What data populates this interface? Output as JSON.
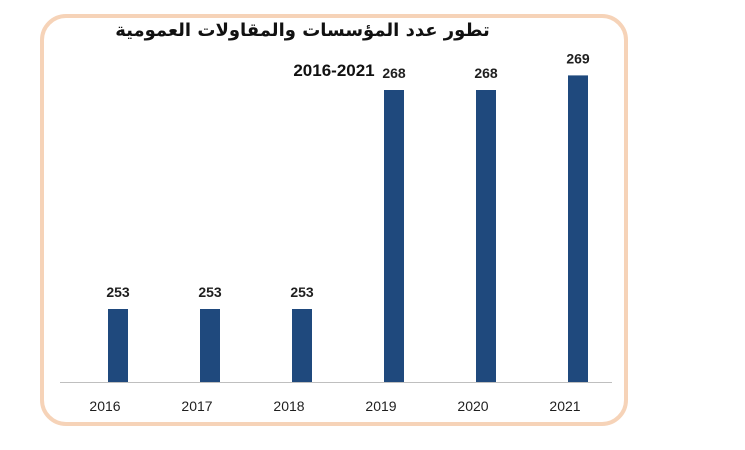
{
  "title": "تطور عدد المؤسسات والمقاولات العمومية",
  "subtitle": "2016-2021",
  "colors": {
    "bar": "#1f497d",
    "frame": "#f6d3b8",
    "text": "#1f1f1f",
    "axis": "#bfbfbf"
  },
  "chart_data": {
    "type": "bar",
    "title": "تطور عدد المؤسسات والمقاولات العمومية",
    "subtitle": "2016-2021",
    "categories": [
      "2016",
      "2017",
      "2018",
      "2019",
      "2020",
      "2021"
    ],
    "values": [
      253,
      253,
      253,
      268,
      268,
      269
    ],
    "data_labels": [
      "253",
      "253",
      "253",
      "268",
      "268",
      "269"
    ],
    "xlabel": "",
    "ylabel": "",
    "grid": false,
    "legend": "none"
  }
}
